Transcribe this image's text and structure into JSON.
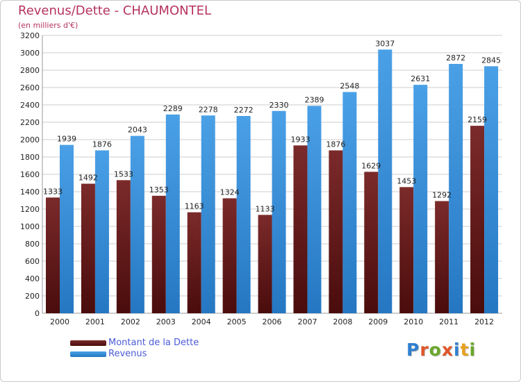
{
  "title": "Revenus/Dette - CHAUMONTEL",
  "subtitle": "(en milliers d'€)",
  "logo": {
    "text": "Proxiti",
    "letter_colors": [
      "#2e7fd0",
      "#e0562a",
      "#6aa82c",
      "#e0562a",
      "#2e7fd0",
      "#e8a020",
      "#6aa82c"
    ]
  },
  "colors": {
    "dette": "#7b2a2a",
    "dette_dark": "#4a0c0c",
    "revenus": "#4aa0e6",
    "revenus_dark": "#2577c2",
    "grid": "#cccccc",
    "axis_text": "#222222"
  },
  "chart_data": {
    "type": "bar",
    "title": "Revenus/Dette - CHAUMONTEL",
    "subtitle": "(en milliers d'€)",
    "categories": [
      "2000",
      "2001",
      "2002",
      "2003",
      "2004",
      "2005",
      "2006",
      "2007",
      "2008",
      "2009",
      "2010",
      "2011",
      "2012"
    ],
    "series": [
      {
        "name": "Montant de la Dette",
        "values": [
          1333,
          1492,
          1533,
          1353,
          1163,
          1324,
          1133,
          1933,
          1876,
          1629,
          1453,
          1292,
          2159
        ],
        "labels": [
          "1333",
          "1492",
          "1533",
          "1353",
          "1163",
          "1324",
          "1133",
          "1933",
          "1876",
          "1629",
          "1453",
          "1292",
          "2159"
        ]
      },
      {
        "name": "Revenus",
        "values": [
          1939,
          1876,
          2043,
          2289,
          2278,
          2272,
          2330,
          2389,
          2548,
          3037,
          2631,
          2872,
          2845
        ],
        "labels": [
          "1939",
          "1876",
          "2043",
          "2289",
          "2278",
          "2272",
          "2330",
          "2389",
          "2548",
          "3037",
          "2631",
          "2872",
          "2845"
        ]
      }
    ],
    "yticks": [
      0,
      200,
      400,
      600,
      800,
      1000,
      1200,
      1400,
      1600,
      1800,
      2000,
      2200,
      2400,
      2600,
      2800,
      3000,
      3200
    ],
    "ylim": [
      0,
      3200
    ],
    "grid": true,
    "legend": "bottom-left"
  }
}
